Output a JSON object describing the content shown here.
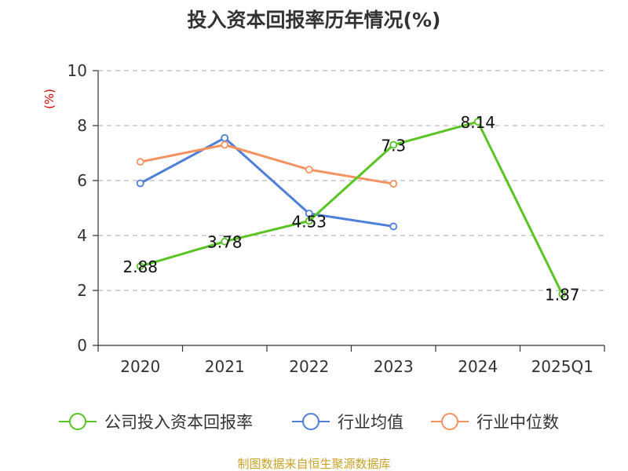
{
  "chart_data": {
    "type": "line",
    "title": "投入资本回报率历年情况(%)",
    "ylabel": "(%)",
    "xlabel": "",
    "ylim": [
      0,
      10
    ],
    "yticks": [
      0,
      2,
      4,
      6,
      8,
      10
    ],
    "grid": "horizontal-dashed",
    "legend_position": "bottom",
    "categories": [
      "2020",
      "2021",
      "2022",
      "2023",
      "2024",
      "2025Q1"
    ],
    "series": [
      {
        "name": "公司投入资本回报率",
        "color": "#5ac425",
        "values": [
          2.88,
          3.78,
          4.53,
          7.3,
          8.14,
          1.87
        ],
        "labels": [
          "2.88",
          "3.78",
          "4.53",
          "7.3",
          "8.14",
          "1.87"
        ]
      },
      {
        "name": "行业均值",
        "color": "#4e7fd9",
        "values": [
          5.9,
          7.55,
          4.8,
          4.33,
          null,
          null
        ]
      },
      {
        "name": "行业中位数",
        "color": "#f59262",
        "values": [
          6.68,
          7.3,
          6.4,
          5.88,
          null,
          null
        ]
      }
    ],
    "source": "制图数据来自恒生聚源数据库"
  },
  "colors": {
    "title": "#333333",
    "axis": "#333333",
    "grid": "#bbbbbb",
    "ylabel": "#d40000",
    "source": "#c9a227"
  }
}
